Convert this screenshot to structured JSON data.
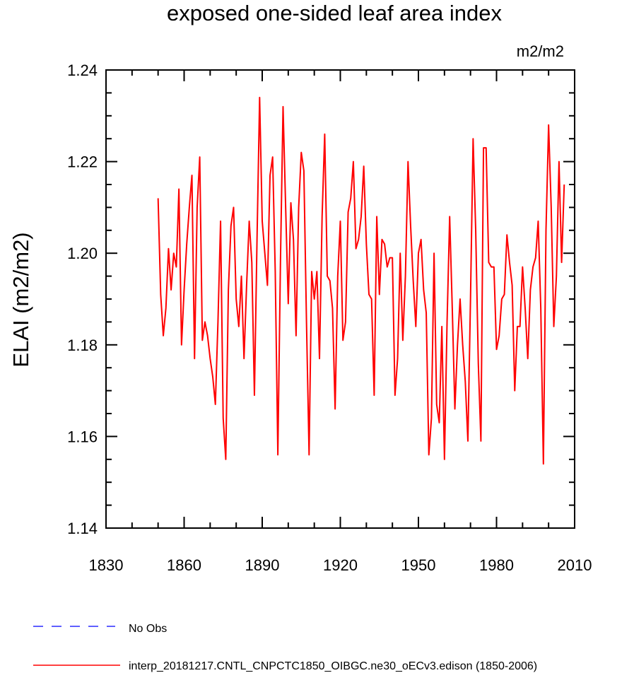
{
  "chart_data": {
    "type": "line",
    "title": "exposed one-sided leaf area index",
    "units": "m2/m2",
    "ylabel": "ELAI  (m2/m2)",
    "xlabel": "",
    "xlim": [
      1830,
      2010
    ],
    "ylim": [
      1.14,
      1.24
    ],
    "xticks": [
      1830,
      1860,
      1890,
      1920,
      1950,
      1980,
      2010
    ],
    "yticks": [
      1.14,
      1.16,
      1.18,
      1.2,
      1.22,
      1.24
    ],
    "ytick_labels": [
      "1.14",
      "1.16",
      "1.18",
      "1.20",
      "1.22",
      "1.24"
    ],
    "grid": false,
    "legend_position": "bottom",
    "series": [
      {
        "name": "No Obs",
        "color": "#0000ff",
        "dash": "dashed",
        "x": [],
        "y": []
      },
      {
        "name": "interp_20181217.CNTL_CNPCTC1850_OIBGC.ne30_oECv3.edison (1850-2006)",
        "color": "#ff0000",
        "dash": "solid",
        "x": [
          1850,
          1851,
          1852,
          1853,
          1854,
          1855,
          1856,
          1857,
          1858,
          1859,
          1860,
          1861,
          1862,
          1863,
          1864,
          1865,
          1866,
          1867,
          1868,
          1869,
          1870,
          1871,
          1872,
          1873,
          1874,
          1875,
          1876,
          1877,
          1878,
          1879,
          1880,
          1881,
          1882,
          1883,
          1884,
          1885,
          1886,
          1887,
          1888,
          1889,
          1890,
          1891,
          1892,
          1893,
          1894,
          1895,
          1896,
          1897,
          1898,
          1899,
          1900,
          1901,
          1902,
          1903,
          1904,
          1905,
          1906,
          1907,
          1908,
          1909,
          1910,
          1911,
          1912,
          1913,
          1914,
          1915,
          1916,
          1917,
          1918,
          1919,
          1920,
          1921,
          1922,
          1923,
          1924,
          1925,
          1926,
          1927,
          1928,
          1929,
          1930,
          1931,
          1932,
          1933,
          1934,
          1935,
          1936,
          1937,
          1938,
          1939,
          1940,
          1941,
          1942,
          1943,
          1944,
          1945,
          1946,
          1947,
          1948,
          1949,
          1950,
          1951,
          1952,
          1953,
          1954,
          1955,
          1956,
          1957,
          1958,
          1959,
          1960,
          1961,
          1962,
          1963,
          1964,
          1965,
          1966,
          1967,
          1968,
          1969,
          1970,
          1971,
          1972,
          1973,
          1974,
          1975,
          1976,
          1977,
          1978,
          1979,
          1980,
          1981,
          1982,
          1983,
          1984,
          1985,
          1986,
          1987,
          1988,
          1989,
          1990,
          1991,
          1992,
          1993,
          1994,
          1995,
          1996,
          1997,
          1998,
          1999,
          2000,
          2001,
          2002,
          2003,
          2004,
          2005,
          2006
        ],
        "y": [
          1.212,
          1.191,
          1.182,
          1.188,
          1.201,
          1.192,
          1.2,
          1.197,
          1.214,
          1.18,
          1.192,
          1.202,
          1.21,
          1.217,
          1.177,
          1.21,
          1.221,
          1.181,
          1.185,
          1.182,
          1.177,
          1.173,
          1.167,
          1.185,
          1.207,
          1.164,
          1.155,
          1.192,
          1.206,
          1.21,
          1.19,
          1.184,
          1.195,
          1.177,
          1.193,
          1.207,
          1.198,
          1.169,
          1.203,
          1.234,
          1.207,
          1.2,
          1.193,
          1.217,
          1.221,
          1.196,
          1.156,
          1.198,
          1.232,
          1.21,
          1.189,
          1.211,
          1.203,
          1.182,
          1.21,
          1.222,
          1.218,
          1.185,
          1.156,
          1.196,
          1.19,
          1.196,
          1.177,
          1.208,
          1.226,
          1.195,
          1.194,
          1.188,
          1.166,
          1.195,
          1.207,
          1.181,
          1.185,
          1.209,
          1.212,
          1.22,
          1.201,
          1.203,
          1.208,
          1.219,
          1.202,
          1.191,
          1.19,
          1.169,
          1.208,
          1.191,
          1.203,
          1.202,
          1.197,
          1.199,
          1.199,
          1.169,
          1.177,
          1.2,
          1.181,
          1.195,
          1.22,
          1.206,
          1.194,
          1.184,
          1.2,
          1.203,
          1.192,
          1.187,
          1.156,
          1.164,
          1.2,
          1.167,
          1.163,
          1.184,
          1.155,
          1.185,
          1.208,
          1.188,
          1.166,
          1.18,
          1.19,
          1.18,
          1.172,
          1.159,
          1.19,
          1.225,
          1.205,
          1.176,
          1.159,
          1.223,
          1.223,
          1.198,
          1.197,
          1.197,
          1.179,
          1.182,
          1.19,
          1.191,
          1.204,
          1.198,
          1.193,
          1.17,
          1.184,
          1.184,
          1.197,
          1.188,
          1.177,
          1.192,
          1.197,
          1.199,
          1.207,
          1.188,
          1.154,
          1.205,
          1.228,
          1.21,
          1.184,
          1.195,
          1.22,
          1.198,
          1.215
        ]
      }
    ]
  }
}
